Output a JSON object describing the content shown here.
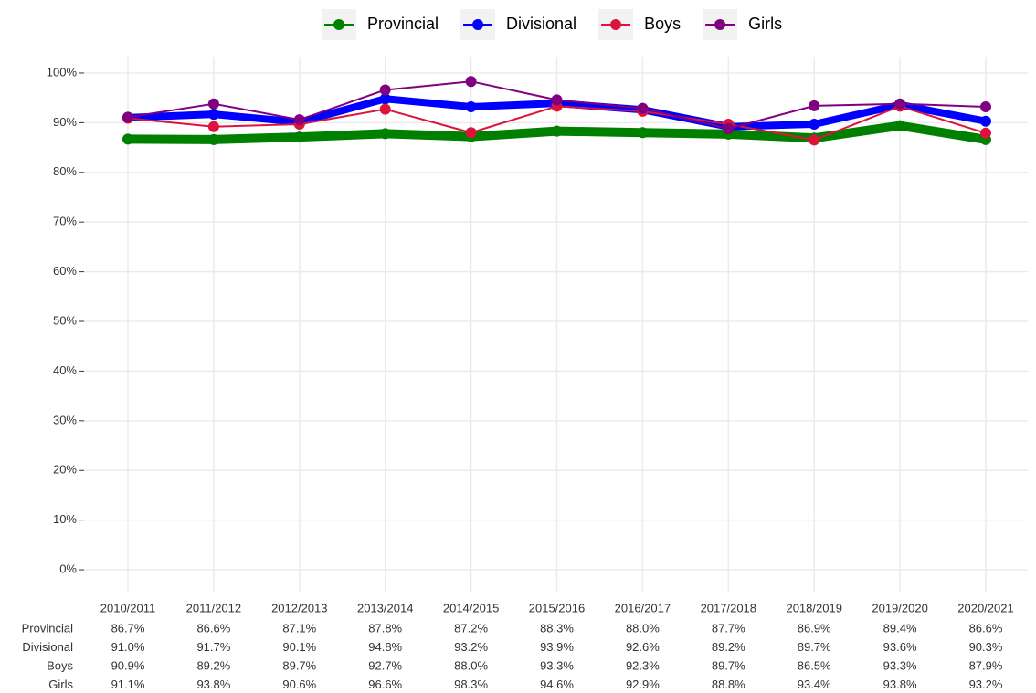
{
  "chart_data": {
    "type": "line",
    "categories": [
      "2010/2011",
      "2011/2012",
      "2012/2013",
      "2013/2014",
      "2014/2015",
      "2015/2016",
      "2016/2017",
      "2017/2018",
      "2018/2019",
      "2019/2020",
      "2020/2021"
    ],
    "series": [
      {
        "name": "Provincial",
        "color": "#008000",
        "values": [
          86.7,
          86.6,
          87.1,
          87.8,
          87.2,
          88.3,
          88.0,
          87.7,
          86.9,
          89.4,
          86.6
        ],
        "value_labels": [
          "86.7%",
          "86.6%",
          "87.1%",
          "87.8%",
          "87.2%",
          "88.3%",
          "88.0%",
          "87.7%",
          "86.9%",
          "89.4%",
          "86.6%"
        ]
      },
      {
        "name": "Divisional",
        "color": "#0000ff",
        "values": [
          91.0,
          91.7,
          90.1,
          94.8,
          93.2,
          93.9,
          92.6,
          89.2,
          89.7,
          93.6,
          90.3
        ],
        "value_labels": [
          "91.0%",
          "91.7%",
          "90.1%",
          "94.8%",
          "93.2%",
          "93.9%",
          "92.6%",
          "89.2%",
          "89.7%",
          "93.6%",
          "90.3%"
        ]
      },
      {
        "name": "Boys",
        "color": "#dc143c",
        "values": [
          90.9,
          89.2,
          89.7,
          92.7,
          88.0,
          93.3,
          92.3,
          89.7,
          86.5,
          93.3,
          87.9
        ],
        "value_labels": [
          "90.9%",
          "89.2%",
          "89.7%",
          "92.7%",
          "88.0%",
          "93.3%",
          "92.3%",
          "89.7%",
          "86.5%",
          "93.3%",
          "87.9%"
        ]
      },
      {
        "name": "Girls",
        "color": "#800080",
        "values": [
          91.1,
          93.8,
          90.6,
          96.6,
          98.3,
          94.6,
          92.9,
          88.8,
          93.4,
          93.8,
          93.2
        ],
        "value_labels": [
          "91.1%",
          "93.8%",
          "90.6%",
          "96.6%",
          "98.3%",
          "94.6%",
          "92.9%",
          "88.8%",
          "93.4%",
          "93.8%",
          "93.2%"
        ]
      }
    ],
    "ylim": [
      -4.4,
      103.3
    ],
    "yticks": [
      {
        "value": 0,
        "label": "0%"
      },
      {
        "value": 10,
        "label": "10%"
      },
      {
        "value": 20,
        "label": "20%"
      },
      {
        "value": 30,
        "label": "30%"
      },
      {
        "value": 40,
        "label": "40%"
      },
      {
        "value": 50,
        "label": "50%"
      },
      {
        "value": 60,
        "label": "60%"
      },
      {
        "value": 70,
        "label": "70%"
      },
      {
        "value": 80,
        "label": "80%"
      },
      {
        "value": 90,
        "label": "90%"
      },
      {
        "value": 100,
        "label": "100%"
      }
    ],
    "grid": true,
    "legend": "top"
  }
}
